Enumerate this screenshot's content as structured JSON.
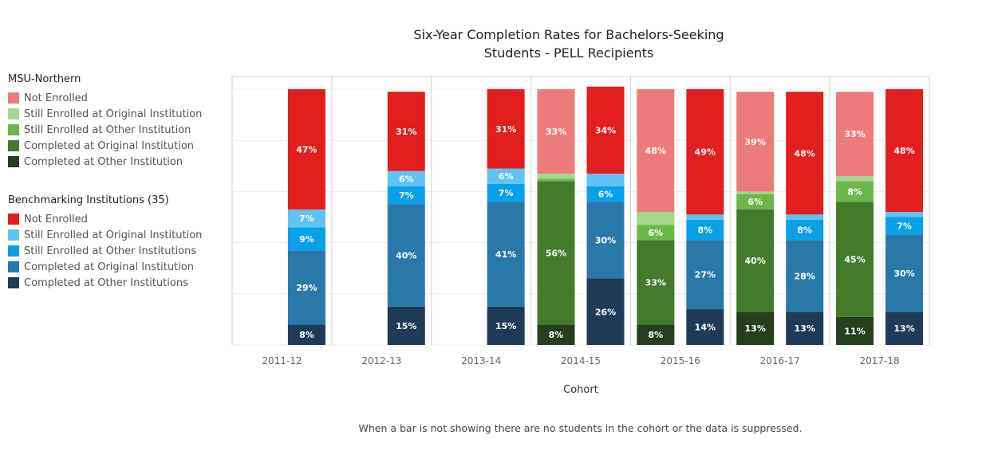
{
  "chart_data": {
    "type": "bar",
    "stacked": true,
    "title": [
      "Six-Year Completion Rates for Bachelors-Seeking",
      "Students - PELL Recipients"
    ],
    "xlabel": "Cohort",
    "ylabel": "",
    "ylim": [
      0,
      100
    ],
    "categories": [
      "2011-12",
      "2012-13",
      "2013-14",
      "2014-15",
      "2015-16",
      "2016-17",
      "2017-18"
    ],
    "groups": [
      {
        "name": "MSU-Northern",
        "legend_title": "MSU-Northern",
        "series": [
          {
            "name": "Completed at Other Institution",
            "color": "#263f1f",
            "values": [
              null,
              null,
              null,
              8,
              8,
              13,
              11
            ],
            "labels": [
              null,
              null,
              null,
              "8%",
              "8%",
              "13%",
              "11%"
            ]
          },
          {
            "name": "Completed at Original Institution",
            "color": "#437a2b",
            "values": [
              null,
              null,
              null,
              56,
              33,
              40,
              45
            ],
            "labels": [
              null,
              null,
              null,
              "56%",
              "33%",
              "40%",
              "45%"
            ]
          },
          {
            "name": "Still Enrolled at Other Institution",
            "color": "#6db84b",
            "values": [
              null,
              null,
              null,
              1,
              6,
              6,
              8
            ],
            "labels": [
              null,
              null,
              null,
              "",
              "6%",
              "6%",
              "8%"
            ]
          },
          {
            "name": "Still Enrolled at Original Institution",
            "color": "#a5d68f",
            "values": [
              null,
              null,
              null,
              2,
              5,
              1,
              2
            ],
            "labels": [
              null,
              null,
              null,
              "",
              "",
              "",
              ""
            ]
          },
          {
            "name": "Not Enrolled",
            "color": "#ee7b7b",
            "values": [
              null,
              null,
              null,
              33,
              48,
              39,
              33
            ],
            "labels": [
              null,
              null,
              null,
              "33%",
              "48%",
              "39%",
              "33%"
            ]
          }
        ]
      },
      {
        "name": "Benchmarking Institutions",
        "legend_title": "Benchmarking Institutions",
        "legend_count": "(35)",
        "series": [
          {
            "name": "Completed at Other Institutions",
            "color": "#1f3b57",
            "values": [
              8,
              15,
              15,
              26,
              14,
              13,
              13
            ],
            "labels": [
              "8%",
              "15%",
              "15%",
              "26%",
              "14%",
              "13%",
              "13%"
            ]
          },
          {
            "name": "Completed at Original Institution",
            "color": "#2a78a8",
            "values": [
              29,
              40,
              41,
              30,
              27,
              28,
              30
            ],
            "labels": [
              "29%",
              "40%",
              "41%",
              "30%",
              "27%",
              "28%",
              "30%"
            ]
          },
          {
            "name": "Still Enrolled at Other Institutions",
            "color": "#0aa0e8",
            "values": [
              9,
              7,
              7,
              6,
              8,
              8,
              7
            ],
            "labels": [
              "9%",
              "7%",
              "7%",
              "6%",
              "8%",
              "8%",
              "7%"
            ]
          },
          {
            "name": "Still Enrolled at Original Institution",
            "color": "#5ec3f2",
            "values": [
              7,
              6,
              6,
              5,
              2,
              2,
              2
            ],
            "labels": [
              "7%",
              "6%",
              "6%",
              "",
              "",
              "",
              ""
            ]
          },
          {
            "name": "Not Enrolled",
            "color": "#e21e1e",
            "values": [
              47,
              31,
              31,
              34,
              49,
              48,
              48
            ],
            "labels": [
              "47%",
              "31%",
              "31%",
              "34%",
              "49%",
              "48%",
              "48%"
            ]
          }
        ]
      }
    ]
  },
  "legends": {
    "msu": {
      "title": "MSU-Northern",
      "items": [
        {
          "label": "Not Enrolled",
          "color": "#ee7b7b"
        },
        {
          "label": "Still Enrolled at Original Institution",
          "color": "#a5d68f"
        },
        {
          "label": "Still Enrolled at Other Institution",
          "color": "#6db84b"
        },
        {
          "label": "Completed at Original Institution",
          "color": "#437a2b"
        },
        {
          "label": "Completed at Other Institution",
          "color": "#263f1f"
        }
      ]
    },
    "bench": {
      "title": "Benchmarking Institutions",
      "count": "(35)",
      "items": [
        {
          "label": "Not Enrolled",
          "color": "#e21e1e"
        },
        {
          "label": "Still Enrolled at Original Institution",
          "color": "#5ec3f2"
        },
        {
          "label": "Still Enrolled at Other Institutions",
          "color": "#0aa0e8"
        },
        {
          "label": "Completed at Original Institution",
          "color": "#2a78a8"
        },
        {
          "label": "Completed at Other Institutions",
          "color": "#1f3b57"
        }
      ]
    }
  },
  "footnote": "When a bar is not showing there are no students in the cohort or the data is suppressed."
}
